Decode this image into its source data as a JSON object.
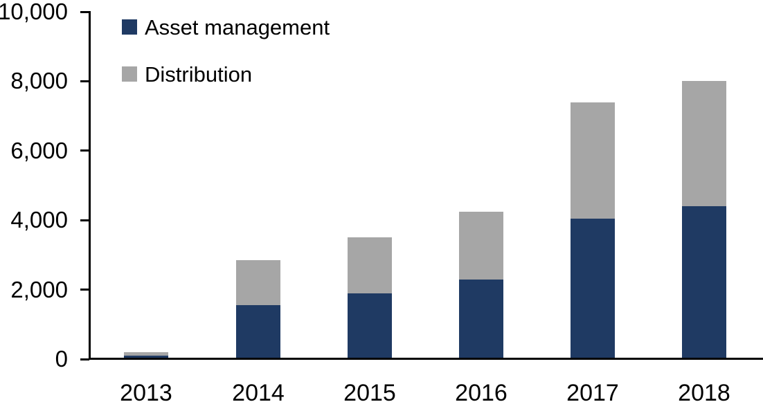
{
  "chart_data": {
    "type": "bar",
    "stacked": true,
    "title": "",
    "xlabel": "",
    "ylabel": "",
    "categories": [
      "2013",
      "2014",
      "2015",
      "2016",
      "2017",
      "2018"
    ],
    "series": [
      {
        "name": "Asset management",
        "color": "#1f3a63",
        "values": [
          100,
          1550,
          1900,
          2300,
          4050,
          4400
        ]
      },
      {
        "name": "Distribution",
        "color": "#a6a6a6",
        "values": [
          100,
          1300,
          1600,
          1950,
          3350,
          3600
        ]
      }
    ],
    "totals": [
      200,
      2850,
      3500,
      4250,
      7400,
      8000
    ],
    "ylim": [
      0,
      10000
    ],
    "ytick_interval": 2000,
    "ytick_labels": [
      "0",
      "2,000",
      "4,000",
      "6,000",
      "8,000",
      "10,000"
    ],
    "grid": false,
    "legend_position": "top-left-inside",
    "axis_color": "#000000",
    "background_color": "#ffffff"
  }
}
